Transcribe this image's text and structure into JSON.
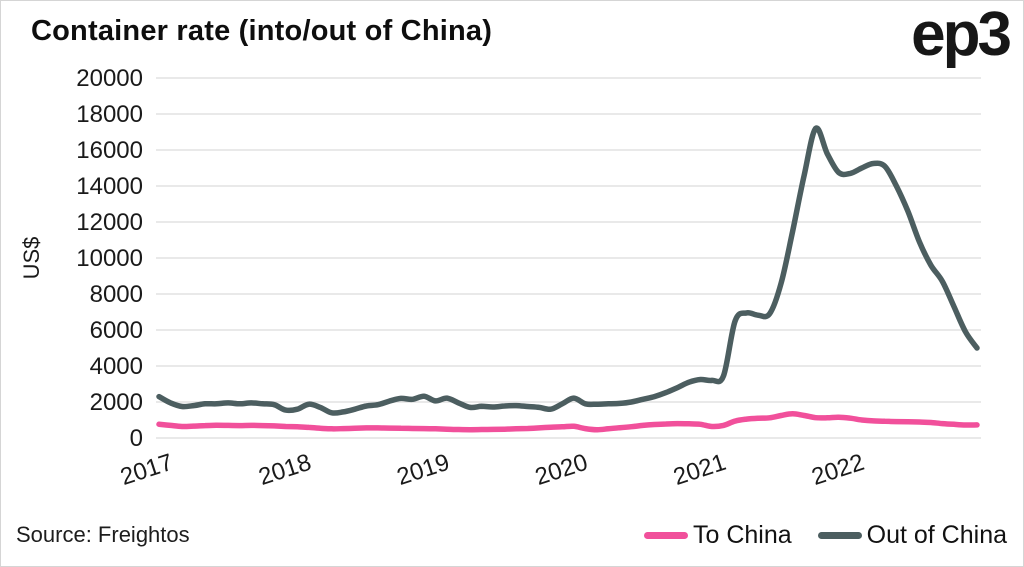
{
  "header": {
    "title": "Container rate (into/out of China)",
    "logo": "ep3"
  },
  "source": {
    "label": "Source: Freightos"
  },
  "legend": [
    {
      "name": "To China",
      "color": "#f1509b"
    },
    {
      "name": "Out of China",
      "color": "#4c5e60"
    }
  ],
  "colors": {
    "grid": "#e2e2e2",
    "tick_text": "#1a1a1a",
    "to_china": "#f1509b",
    "out_of_china": "#4c5e60"
  },
  "chart_data": {
    "type": "line",
    "title": "Container rate (into/out of China)",
    "xlabel": "",
    "ylabel": "US$",
    "ylim": [
      0,
      20000
    ],
    "yticks": [
      0,
      2000,
      4000,
      6000,
      8000,
      10000,
      12000,
      14000,
      16000,
      18000,
      20000
    ],
    "grid": "horizontal",
    "legend_position": "bottom-right",
    "x_tick_labels": [
      "2017",
      "2018",
      "2019",
      "2020",
      "2021",
      "2022"
    ],
    "x_unit": "monthly, Jan 2017 - Dec 2022",
    "series": [
      {
        "name": "Out of China",
        "color": "#4c5e60",
        "values": [
          2300,
          1950,
          1750,
          1800,
          1900,
          1900,
          1950,
          1900,
          1950,
          1900,
          1850,
          1550,
          1600,
          1880,
          1700,
          1400,
          1450,
          1600,
          1780,
          1850,
          2050,
          2200,
          2150,
          2320,
          2060,
          2215,
          1950,
          1700,
          1760,
          1720,
          1780,
          1800,
          1750,
          1700,
          1600,
          1900,
          2215,
          1900,
          1880,
          1900,
          1920,
          2000,
          2150,
          2300,
          2520,
          2800,
          3100,
          3250,
          3200,
          3450,
          6500,
          6950,
          6820,
          6900,
          8600,
          11500,
          14600,
          17200,
          15800,
          14750,
          14700,
          15000,
          15250,
          15100,
          14000,
          12600,
          10900,
          9600,
          8700,
          7300,
          5900,
          5000
        ]
      },
      {
        "name": "To China",
        "color": "#f1509b",
        "values": [
          760,
          700,
          640,
          660,
          690,
          710,
          700,
          690,
          700,
          690,
          670,
          640,
          620,
          590,
          540,
          510,
          520,
          540,
          560,
          560,
          550,
          540,
          530,
          520,
          510,
          490,
          470,
          460,
          470,
          480,
          490,
          510,
          530,
          560,
          600,
          620,
          650,
          520,
          460,
          510,
          570,
          630,
          700,
          750,
          780,
          800,
          790,
          760,
          640,
          700,
          940,
          1050,
          1100,
          1120,
          1250,
          1345,
          1250,
          1130,
          1120,
          1150,
          1100,
          1000,
          950,
          930,
          910,
          900,
          890,
          860,
          800,
          760,
          720,
          730
        ]
      }
    ]
  }
}
